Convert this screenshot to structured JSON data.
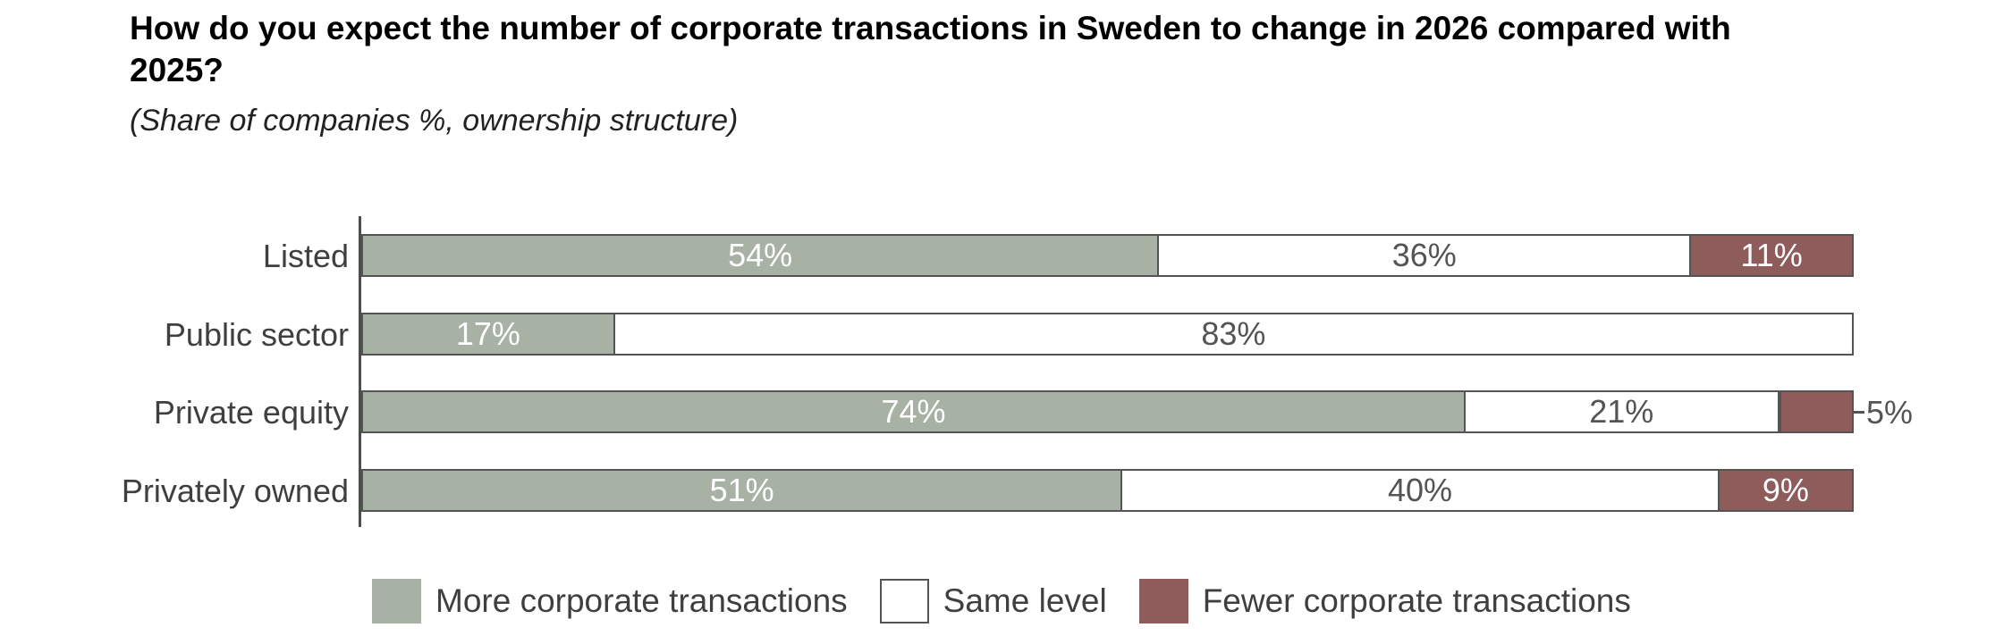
{
  "title": "How do you expect the number of corporate transactions in Sweden to change in 2026 compared with 2025?",
  "subtitle": "(Share of companies %, ownership structure)",
  "chart_data": {
    "type": "bar",
    "orientation": "horizontal",
    "stacked": true,
    "grid": false,
    "legend_position": "bottom",
    "value_suffix": "%",
    "xlim": [
      0,
      100
    ],
    "categories": [
      "Listed",
      "Public sector",
      "Private equity",
      "Privately owned"
    ],
    "series": [
      {
        "name": "More corporate transactions",
        "color": "#a7b1a4",
        "label_color": "#ffffff",
        "values": [
          54,
          17,
          74,
          51
        ]
      },
      {
        "name": "Same level",
        "color": "#ffffff",
        "label_color": "#545454",
        "values": [
          36,
          83,
          21,
          40
        ]
      },
      {
        "name": "Fewer corporate transactions",
        "color": "#8f5c5c",
        "label_color": "#ffffff",
        "values": [
          11,
          0,
          5,
          9
        ]
      }
    ],
    "outside_labels": [
      {
        "category_index": 2,
        "series_index": 2,
        "label": "5%"
      }
    ],
    "colors": {
      "segment_border": "#545454",
      "axis": "#4d4d4d",
      "category_text": "#3f3f3f",
      "value_on_white": "#545454",
      "value_on_color": "#ffffff"
    }
  }
}
